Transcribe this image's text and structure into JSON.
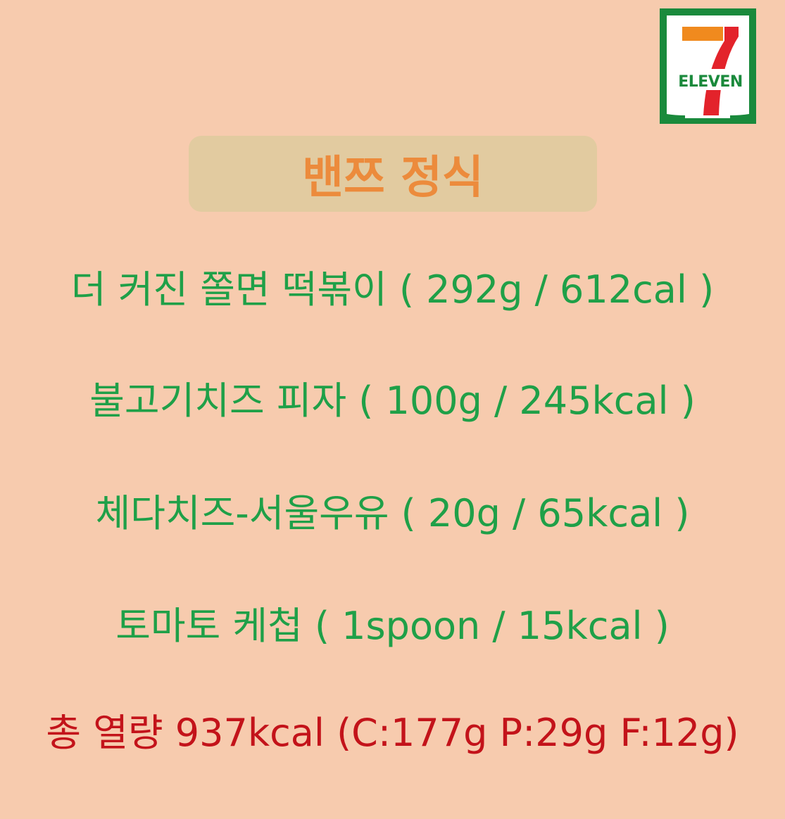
{
  "logo": {
    "brand_text": "ELEVEN",
    "colors": {
      "green": "#1a8a3c",
      "orange": "#f08a1e",
      "red": "#e3232b"
    }
  },
  "title": "밴쯔 정식",
  "items": [
    "더 커진 쫄면 떡볶이 ( 292g / 612cal )",
    "불고기치즈 피자 ( 100g / 245kcal )",
    "체다치즈-서울우유 ( 20g / 65kcal )",
    "토마토 케첩 ( 1spoon / 15kcal )"
  ],
  "total": "총 열량 937kcal (C:177g P:29g F:12g)",
  "colors": {
    "background": "#f7cbae",
    "title_box": "#e2cba0",
    "title_text": "#ec8b3c",
    "item_text": "#1fa048",
    "total_text": "#c3131a"
  }
}
